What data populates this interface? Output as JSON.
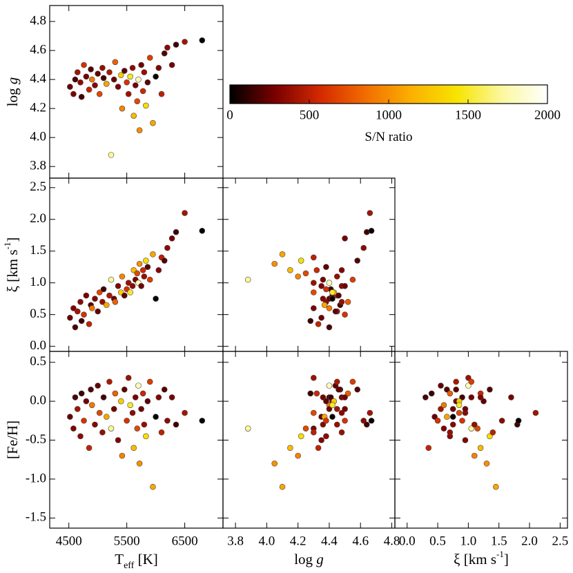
{
  "chart_data": [
    {
      "type": "scatter",
      "x": [
        4520,
        4580,
        4610,
        4650,
        4700,
        4720,
        4760,
        4800,
        4850,
        4880,
        4900,
        4950,
        5000,
        5030,
        5080,
        5100,
        5150,
        5200,
        5230,
        5280,
        5300,
        5350,
        5400,
        5420,
        5460,
        5500,
        5530,
        5560,
        5600,
        5620,
        5650,
        5680,
        5700,
        5720,
        5750,
        5780,
        5800,
        5830,
        5860,
        5900,
        5950,
        6000,
        6050,
        6100,
        6150,
        6200,
        6280,
        6350,
        6500,
        6800
      ],
      "y": [
        4.35,
        4.3,
        4.4,
        4.45,
        4.38,
        4.28,
        4.5,
        4.42,
        4.33,
        4.47,
        4.4,
        4.36,
        4.44,
        4.3,
        4.48,
        4.41,
        4.37,
        4.45,
        3.88,
        4.4,
        4.52,
        4.35,
        4.43,
        4.2,
        4.46,
        4.38,
        4.3,
        4.42,
        4.48,
        4.15,
        4.36,
        4.25,
        4.4,
        4.05,
        4.5,
        4.32,
        4.45,
        4.22,
        4.38,
        4.55,
        4.1,
        4.42,
        4.48,
        4.3,
        4.58,
        4.62,
        4.5,
        4.64,
        4.66,
        4.67
      ],
      "c": [
        250,
        300,
        180,
        420,
        350,
        150,
        600,
        280,
        520,
        200,
        900,
        330,
        240,
        700,
        380,
        160,
        1100,
        450,
        1700,
        260,
        800,
        310,
        1300,
        950,
        220,
        600,
        400,
        1500,
        350,
        1200,
        290,
        700,
        1800,
        1000,
        270,
        550,
        380,
        1400,
        220,
        650,
        1100,
        30,
        320,
        500,
        200,
        350,
        280,
        150,
        420,
        20
      ],
      "xlim": [
        4170,
        7160
      ],
      "ylim": [
        3.72,
        4.91
      ],
      "xticks": [
        4500,
        5500,
        6500
      ],
      "yticks": [
        3.8,
        {
          "value": 4,
          "label": "4.0"
        },
        4.2,
        4.4,
        4.6,
        4.8
      ],
      "xtick_labels": false,
      "ytick_labels": true,
      "ylabel": [
        {
          "text": "log "
        },
        {
          "text": "g",
          "style": "italic"
        }
      ]
    },
    {
      "type": "scatter",
      "x": [
        4520,
        4580,
        4610,
        4650,
        4700,
        4720,
        4760,
        4800,
        4850,
        4880,
        4900,
        4950,
        5000,
        5030,
        5080,
        5100,
        5150,
        5200,
        5230,
        5280,
        5300,
        5350,
        5400,
        5420,
        5460,
        5500,
        5530,
        5560,
        5600,
        5620,
        5650,
        5680,
        5700,
        5720,
        5750,
        5780,
        5800,
        5830,
        5860,
        5900,
        5950,
        6000,
        6050,
        6100,
        6150,
        6200,
        6280,
        6350,
        6500,
        6800
      ],
      "y": [
        0.45,
        0.6,
        0.3,
        0.55,
        0.7,
        0.4,
        0.5,
        0.8,
        0.35,
        0.65,
        0.6,
        0.75,
        0.55,
        0.85,
        0.7,
        0.9,
        0.65,
        0.8,
        1.05,
        0.75,
        0.7,
        0.95,
        0.85,
        1.1,
        0.8,
        0.9,
        1.0,
        0.85,
        0.95,
        1.2,
        1.05,
        1.15,
        1.0,
        1.3,
        0.95,
        1.2,
        1.1,
        1.35,
        1.25,
        1.05,
        1.45,
        0.75,
        1.2,
        1.4,
        1.35,
        1.55,
        1.7,
        1.8,
        2.1,
        1.82
      ],
      "c": [
        250,
        300,
        180,
        420,
        350,
        150,
        600,
        280,
        520,
        200,
        900,
        330,
        240,
        700,
        380,
        160,
        1100,
        450,
        1700,
        260,
        800,
        310,
        1300,
        950,
        220,
        600,
        400,
        1500,
        350,
        1200,
        290,
        700,
        1800,
        1000,
        270,
        550,
        380,
        1400,
        220,
        650,
        1100,
        30,
        320,
        500,
        200,
        350,
        280,
        150,
        420,
        20
      ],
      "xlim": [
        4170,
        7160
      ],
      "ylim": [
        -0.08,
        2.65
      ],
      "xticks": [
        4500,
        5500,
        6500
      ],
      "yticks": [
        {
          "value": 0,
          "label": "0.0"
        },
        0.5,
        {
          "value": 1,
          "label": "1.0"
        },
        1.5,
        {
          "value": 2,
          "label": "2.0"
        },
        2.5
      ],
      "xtick_labels": false,
      "ytick_labels": true,
      "ylabel": [
        {
          "text": "ξ [km s"
        },
        {
          "text": "-1",
          "style": "sup"
        },
        {
          "text": "]"
        }
      ]
    },
    {
      "type": "scatter",
      "x": [
        4.35,
        4.3,
        4.4,
        4.45,
        4.38,
        4.28,
        4.5,
        4.42,
        4.33,
        4.47,
        4.4,
        4.36,
        4.44,
        4.3,
        4.48,
        4.41,
        4.37,
        4.45,
        3.88,
        4.4,
        4.52,
        4.35,
        4.43,
        4.2,
        4.46,
        4.38,
        4.3,
        4.42,
        4.48,
        4.15,
        4.36,
        4.25,
        4.4,
        4.05,
        4.5,
        4.32,
        4.45,
        4.22,
        4.38,
        4.55,
        4.1,
        4.42,
        4.48,
        4.3,
        4.58,
        4.62,
        4.5,
        4.64,
        4.66,
        4.67
      ],
      "y": [
        0.45,
        0.6,
        0.3,
        0.55,
        0.7,
        0.4,
        0.5,
        0.8,
        0.35,
        0.65,
        0.6,
        0.75,
        0.55,
        0.85,
        0.7,
        0.9,
        0.65,
        0.8,
        1.05,
        0.75,
        0.7,
        0.95,
        0.85,
        1.1,
        0.8,
        0.9,
        1.0,
        0.85,
        0.95,
        1.2,
        1.05,
        1.15,
        1.0,
        1.3,
        0.95,
        1.2,
        1.1,
        1.35,
        1.25,
        1.05,
        1.45,
        0.75,
        1.2,
        1.4,
        1.35,
        1.55,
        1.7,
        1.8,
        2.1,
        1.82
      ],
      "c": [
        250,
        300,
        180,
        420,
        350,
        150,
        600,
        280,
        520,
        200,
        900,
        330,
        240,
        700,
        380,
        160,
        1100,
        450,
        1700,
        260,
        800,
        310,
        1300,
        950,
        220,
        600,
        400,
        1500,
        350,
        1200,
        290,
        700,
        1800,
        1000,
        270,
        550,
        380,
        1400,
        220,
        650,
        1100,
        30,
        320,
        500,
        200,
        350,
        280,
        150,
        420,
        20
      ],
      "xlim": [
        3.72,
        4.82
      ],
      "ylim": [
        -0.08,
        2.65
      ],
      "xticks": [
        3.8,
        {
          "value": 4,
          "label": "4.0"
        },
        4.2,
        4.4,
        4.6,
        4.8
      ],
      "yticks": [
        {
          "value": 0,
          "label": "0.0"
        },
        0.5,
        {
          "value": 1,
          "label": "1.0"
        },
        1.5,
        {
          "value": 2,
          "label": "2.0"
        },
        2.5
      ],
      "xtick_labels": false,
      "ytick_labels": false
    },
    {
      "type": "scatter",
      "x": [
        4520,
        4580,
        4610,
        4650,
        4700,
        4720,
        4760,
        4800,
        4850,
        4880,
        4900,
        4950,
        5000,
        5030,
        5080,
        5100,
        5150,
        5200,
        5230,
        5280,
        5300,
        5350,
        5400,
        5420,
        5460,
        5500,
        5530,
        5560,
        5600,
        5620,
        5650,
        5680,
        5700,
        5720,
        5750,
        5780,
        5800,
        5830,
        5860,
        5900,
        5950,
        6000,
        6050,
        6100,
        6150,
        6200,
        6280,
        6350,
        6500,
        6800
      ],
      "y": [
        -0.2,
        -0.35,
        0.05,
        -0.1,
        -0.45,
        0.1,
        -0.25,
        0.0,
        -0.6,
        0.15,
        -0.05,
        -0.3,
        0.2,
        -0.15,
        -0.4,
        0.05,
        -0.2,
        0.25,
        -0.35,
        -0.1,
        0.1,
        -0.5,
        0.0,
        -0.7,
        0.15,
        -0.25,
        0.3,
        -0.05,
        -0.15,
        -0.6,
        0.05,
        -0.35,
        0.2,
        -0.8,
        -0.1,
        0.1,
        -0.3,
        -0.45,
        0.0,
        0.25,
        -1.1,
        -0.2,
        0.05,
        -0.4,
        0.15,
        -0.25,
        0.05,
        -0.3,
        -0.15,
        -0.25
      ],
      "c": [
        250,
        300,
        180,
        420,
        350,
        150,
        600,
        280,
        520,
        200,
        900,
        330,
        240,
        700,
        380,
        160,
        1100,
        450,
        1700,
        260,
        800,
        310,
        1300,
        950,
        220,
        600,
        400,
        1500,
        350,
        1200,
        290,
        700,
        1800,
        1000,
        270,
        550,
        380,
        1400,
        220,
        650,
        1100,
        30,
        320,
        500,
        200,
        350,
        280,
        150,
        420,
        20
      ],
      "xlim": [
        4170,
        7160
      ],
      "ylim": [
        -1.63,
        0.64
      ],
      "xticks": [
        4500,
        5500,
        6500
      ],
      "yticks": [
        -1.5,
        {
          "value": -1,
          "label": "-1.0"
        },
        -0.5,
        {
          "value": 0,
          "label": "0.0"
        },
        0.5
      ],
      "xtick_labels": true,
      "ytick_labels": true,
      "xlabel": [
        {
          "text": "T"
        },
        {
          "text": "eff",
          "style": "sub"
        },
        {
          "text": " [K]"
        }
      ],
      "ylabel": [
        {
          "text": "[Fe/H]"
        }
      ]
    },
    {
      "type": "scatter",
      "x": [
        4.35,
        4.3,
        4.4,
        4.45,
        4.38,
        4.28,
        4.5,
        4.42,
        4.33,
        4.47,
        4.4,
        4.36,
        4.44,
        4.3,
        4.48,
        4.41,
        4.37,
        4.45,
        3.88,
        4.4,
        4.52,
        4.35,
        4.43,
        4.2,
        4.46,
        4.38,
        4.3,
        4.42,
        4.48,
        4.15,
        4.36,
        4.25,
        4.4,
        4.05,
        4.5,
        4.32,
        4.45,
        4.22,
        4.38,
        4.55,
        4.1,
        4.42,
        4.48,
        4.3,
        4.58,
        4.62,
        4.5,
        4.64,
        4.66,
        4.67
      ],
      "y": [
        -0.2,
        -0.35,
        0.05,
        -0.1,
        -0.45,
        0.1,
        -0.25,
        0.0,
        -0.6,
        0.15,
        -0.05,
        -0.3,
        0.2,
        -0.15,
        -0.4,
        0.05,
        -0.2,
        0.25,
        -0.35,
        -0.1,
        0.1,
        -0.5,
        0.0,
        -0.7,
        0.15,
        -0.25,
        0.3,
        -0.05,
        -0.15,
        -0.6,
        0.05,
        -0.35,
        0.2,
        -0.8,
        -0.1,
        0.1,
        -0.3,
        -0.45,
        0.0,
        0.25,
        -1.1,
        -0.2,
        0.05,
        -0.4,
        0.15,
        -0.25,
        0.05,
        -0.3,
        -0.15,
        -0.25
      ],
      "c": [
        250,
        300,
        180,
        420,
        350,
        150,
        600,
        280,
        520,
        200,
        900,
        330,
        240,
        700,
        380,
        160,
        1100,
        450,
        1700,
        260,
        800,
        310,
        1300,
        950,
        220,
        600,
        400,
        1500,
        350,
        1200,
        290,
        700,
        1800,
        1000,
        270,
        550,
        380,
        1400,
        220,
        650,
        1100,
        30,
        320,
        500,
        200,
        350,
        280,
        150,
        420,
        20
      ],
      "xlim": [
        3.72,
        4.82
      ],
      "ylim": [
        -1.63,
        0.64
      ],
      "xticks": [
        3.8,
        {
          "value": 4,
          "label": "4.0"
        },
        4.2,
        4.4,
        4.6,
        4.8
      ],
      "yticks": [
        -1.5,
        {
          "value": -1,
          "label": "-1.0"
        },
        -0.5,
        {
          "value": 0,
          "label": "0.0"
        },
        0.5
      ],
      "xtick_labels": true,
      "ytick_labels": false,
      "xlabel": [
        {
          "text": "log "
        },
        {
          "text": "g",
          "style": "italic"
        }
      ]
    },
    {
      "type": "scatter",
      "x": [
        0.45,
        0.6,
        0.3,
        0.55,
        0.7,
        0.4,
        0.5,
        0.8,
        0.35,
        0.65,
        0.6,
        0.75,
        0.55,
        0.85,
        0.7,
        0.9,
        0.65,
        0.8,
        1.05,
        0.75,
        0.7,
        0.95,
        0.85,
        1.1,
        0.8,
        0.9,
        1.0,
        0.85,
        0.95,
        1.2,
        1.05,
        1.15,
        1.0,
        1.3,
        0.95,
        1.2,
        1.1,
        1.35,
        1.25,
        1.05,
        1.45,
        0.75,
        1.2,
        1.4,
        1.35,
        1.55,
        1.7,
        1.8,
        2.1,
        1.82
      ],
      "y": [
        -0.2,
        -0.35,
        0.05,
        -0.1,
        -0.45,
        0.1,
        -0.25,
        0.0,
        -0.6,
        0.15,
        -0.05,
        -0.3,
        0.2,
        -0.15,
        -0.4,
        0.05,
        -0.2,
        0.25,
        -0.35,
        -0.1,
        0.1,
        -0.5,
        0.0,
        -0.7,
        0.15,
        -0.25,
        0.3,
        -0.05,
        -0.15,
        -0.6,
        0.05,
        -0.35,
        0.2,
        -0.8,
        -0.1,
        0.1,
        -0.3,
        -0.45,
        0.0,
        0.25,
        -1.1,
        -0.2,
        0.05,
        -0.4,
        0.15,
        -0.25,
        0.05,
        -0.3,
        -0.15,
        -0.25
      ],
      "c": [
        250,
        300,
        180,
        420,
        350,
        150,
        600,
        280,
        520,
        200,
        900,
        330,
        240,
        700,
        380,
        160,
        1100,
        450,
        1700,
        260,
        800,
        310,
        1300,
        950,
        220,
        600,
        400,
        1500,
        350,
        1200,
        290,
        700,
        1800,
        1000,
        270,
        550,
        380,
        1400,
        220,
        650,
        1100,
        30,
        320,
        500,
        200,
        350,
        280,
        150,
        420,
        20
      ],
      "xlim": [
        -0.2,
        2.62
      ],
      "ylim": [
        -1.63,
        0.64
      ],
      "xticks": [
        {
          "value": 0,
          "label": "0.0"
        },
        0.5,
        {
          "value": 1,
          "label": "1.0"
        },
        1.5,
        {
          "value": 2,
          "label": "2.0"
        },
        2.5
      ],
      "yticks": [
        -1.5,
        {
          "value": -1,
          "label": "-1.0"
        },
        -0.5,
        {
          "value": 0,
          "label": "0.0"
        },
        0.5
      ],
      "xtick_labels": true,
      "ytick_labels": false,
      "xlabel": [
        {
          "text": "ξ [km s"
        },
        {
          "text": "-1",
          "style": "sup"
        },
        {
          "text": "]"
        }
      ]
    },
    {
      "type": "colorbar",
      "xlim": [
        0,
        2000
      ],
      "xticks": [
        0,
        500,
        1000,
        1500,
        2000
      ],
      "colormap": [
        "#000000",
        "#7a0000",
        "#d42a00",
        "#f26d00",
        "#fbb000",
        "#f7e400",
        "#fbf8a0",
        "#ffffff"
      ],
      "xlabel": [
        {
          "text": "S/N ratio"
        }
      ]
    }
  ]
}
